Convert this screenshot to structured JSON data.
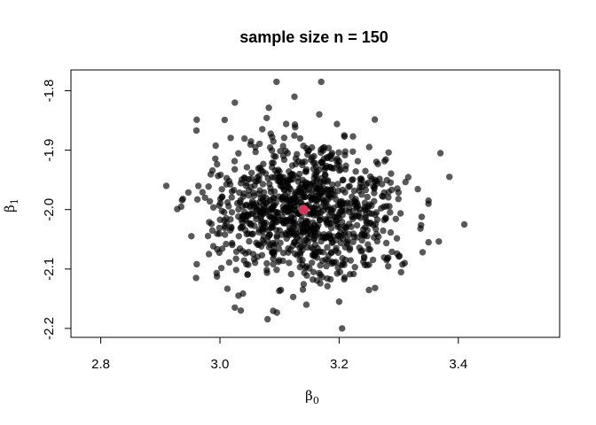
{
  "chart_data": {
    "type": "scatter",
    "title": "sample size n = 150",
    "xlabel": "β",
    "xlabel_subscript": "0",
    "ylabel": "β",
    "ylabel_subscript": "1",
    "xlim": [
      2.75,
      3.57
    ],
    "ylim": [
      -2.215,
      -1.765
    ],
    "xticks": [
      2.8,
      3.0,
      3.2,
      3.4
    ],
    "xtick_labels": [
      "2.8",
      "3.0",
      "3.2",
      "3.4"
    ],
    "yticks": [
      -1.8,
      -1.9,
      -2.0,
      -2.1,
      -2.2
    ],
    "ytick_labels": [
      "-1.8",
      "-1.9",
      "-2.0",
      "-2.1",
      "-2.2"
    ],
    "grid": false,
    "series": [
      {
        "role": "estimates",
        "color": "#000000",
        "opacity": 0.65,
        "count": 1000,
        "center": [
          3.14,
          -2.0
        ],
        "sd": [
          0.075,
          0.06
        ],
        "outliers": [
          [
            2.91,
            -1.96
          ],
          [
            2.935,
            -1.995
          ],
          [
            2.96,
            -2.115
          ],
          [
            2.975,
            -1.98
          ],
          [
            3.025,
            -1.82
          ],
          [
            3.025,
            -2.165
          ],
          [
            3.035,
            -2.17
          ],
          [
            3.095,
            -1.785
          ],
          [
            3.125,
            -1.81
          ],
          [
            3.17,
            -1.785
          ],
          [
            3.145,
            -2.16
          ],
          [
            3.205,
            -2.2
          ],
          [
            3.2,
            -2.155
          ],
          [
            3.37,
            -1.905
          ],
          [
            3.385,
            -1.945
          ],
          [
            3.41,
            -2.025
          ],
          [
            3.35,
            -2.055
          ],
          [
            3.35,
            -1.985
          ],
          [
            3.31,
            -2.09
          ]
        ]
      },
      {
        "role": "true value",
        "color": "#D6355A",
        "points": [
          [
            3.14,
            -2.0
          ]
        ]
      }
    ]
  }
}
